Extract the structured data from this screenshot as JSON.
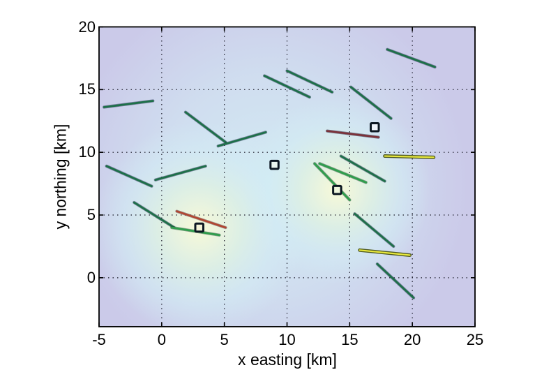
{
  "figure": {
    "background": "#ffffff"
  },
  "axes": {
    "xlabel": "x easting [km]",
    "ylabel": "y northing [km]",
    "x_tick_labels": [
      "-5",
      "0",
      "5",
      "10",
      "15",
      "20",
      "25"
    ],
    "y_tick_labels": [
      "20",
      "15",
      "10",
      "5",
      "0"
    ]
  },
  "chart_data": {
    "type": "line",
    "title": "",
    "xlabel": "x easting [km]",
    "ylabel": "y northing [km]",
    "xlim": [
      -5,
      25
    ],
    "ylim": [
      -3.9,
      20
    ],
    "x_ticks": [
      -5,
      0,
      5,
      10,
      15,
      20,
      25
    ],
    "y_ticks": [
      20,
      15,
      10,
      5,
      0
    ],
    "grid_x": [
      0,
      5,
      10,
      15,
      20
    ],
    "grid_y": [
      0,
      5,
      10,
      15
    ],
    "grid_style": "dotted",
    "legend": "none",
    "background": {
      "base": "#cbcae9",
      "glow_cyan": "#d3ecf4",
      "glow_cream": "#f8f9d8",
      "hotspots": [
        {
          "x": 8.5,
          "y": 7.5,
          "r_km": 16.0,
          "type": "cyan"
        },
        {
          "x": 3.0,
          "y": 4.0,
          "r_km": 8.5,
          "type": "cream"
        },
        {
          "x": 14.0,
          "y": 7.0,
          "r_km": 7.5,
          "type": "cream"
        }
      ]
    },
    "palette": {
      "teal": "#1d7048",
      "green": "#2f9e4c",
      "red": "#b2452f",
      "maroon": "#7c3038",
      "yellow": "#e9e93c",
      "yellow_edge": "#4f5a22",
      "marker_edge": "#0c1722",
      "grid": "#1c1c2a",
      "axis_box": "#000000"
    },
    "segments": [
      {
        "x1": -4.6,
        "y1": 13.6,
        "x2": -0.7,
        "y2": 14.1,
        "color": "teal"
      },
      {
        "x1": 1.9,
        "y1": 13.2,
        "x2": 5.1,
        "y2": 10.8,
        "color": "teal"
      },
      {
        "x1": 4.5,
        "y1": 10.5,
        "x2": 8.3,
        "y2": 11.6,
        "color": "teal"
      },
      {
        "x1": -4.4,
        "y1": 8.9,
        "x2": -0.8,
        "y2": 7.3,
        "color": "teal"
      },
      {
        "x1": -0.5,
        "y1": 7.8,
        "x2": 3.5,
        "y2": 8.9,
        "color": "teal"
      },
      {
        "x1": -2.2,
        "y1": 6.0,
        "x2": 1.0,
        "y2": 4.0,
        "color": "teal"
      },
      {
        "x1": 0.8,
        "y1": 4.0,
        "x2": 4.6,
        "y2": 3.4,
        "color": "green"
      },
      {
        "x1": 1.2,
        "y1": 5.3,
        "x2": 5.1,
        "y2": 4.0,
        "color": "red"
      },
      {
        "x1": 8.2,
        "y1": 16.1,
        "x2": 11.8,
        "y2": 14.4,
        "color": "teal"
      },
      {
        "x1": 10.0,
        "y1": 16.5,
        "x2": 13.6,
        "y2": 14.8,
        "color": "teal"
      },
      {
        "x1": 15.1,
        "y1": 15.2,
        "x2": 18.3,
        "y2": 12.7,
        "color": "teal"
      },
      {
        "x1": 18.0,
        "y1": 18.2,
        "x2": 21.8,
        "y2": 16.8,
        "color": "teal"
      },
      {
        "x1": 13.2,
        "y1": 11.7,
        "x2": 17.3,
        "y2": 11.2,
        "color": "maroon"
      },
      {
        "x1": 17.8,
        "y1": 9.7,
        "x2": 21.7,
        "y2": 9.6,
        "color": "yellow"
      },
      {
        "x1": 14.3,
        "y1": 9.7,
        "x2": 17.8,
        "y2": 7.7,
        "color": "teal"
      },
      {
        "x1": 12.6,
        "y1": 9.1,
        "x2": 16.3,
        "y2": 7.6,
        "color": "green"
      },
      {
        "x1": 12.2,
        "y1": 9.1,
        "x2": 15.0,
        "y2": 6.2,
        "color": "green"
      },
      {
        "x1": 15.4,
        "y1": 5.1,
        "x2": 18.5,
        "y2": 2.5,
        "color": "teal"
      },
      {
        "x1": 15.8,
        "y1": 2.2,
        "x2": 19.8,
        "y2": 1.8,
        "color": "yellow"
      },
      {
        "x1": 17.2,
        "y1": 1.1,
        "x2": 20.1,
        "y2": -1.6,
        "color": "teal"
      }
    ],
    "markers": [
      {
        "x": 3,
        "y": 4,
        "fill": "#f4f3d6"
      },
      {
        "x": 9,
        "y": 9,
        "fill": "#eaf6f0"
      },
      {
        "x": 14,
        "y": 7,
        "fill": "#eef5dc"
      },
      {
        "x": 17,
        "y": 12,
        "fill": "#eef3fa"
      }
    ]
  }
}
